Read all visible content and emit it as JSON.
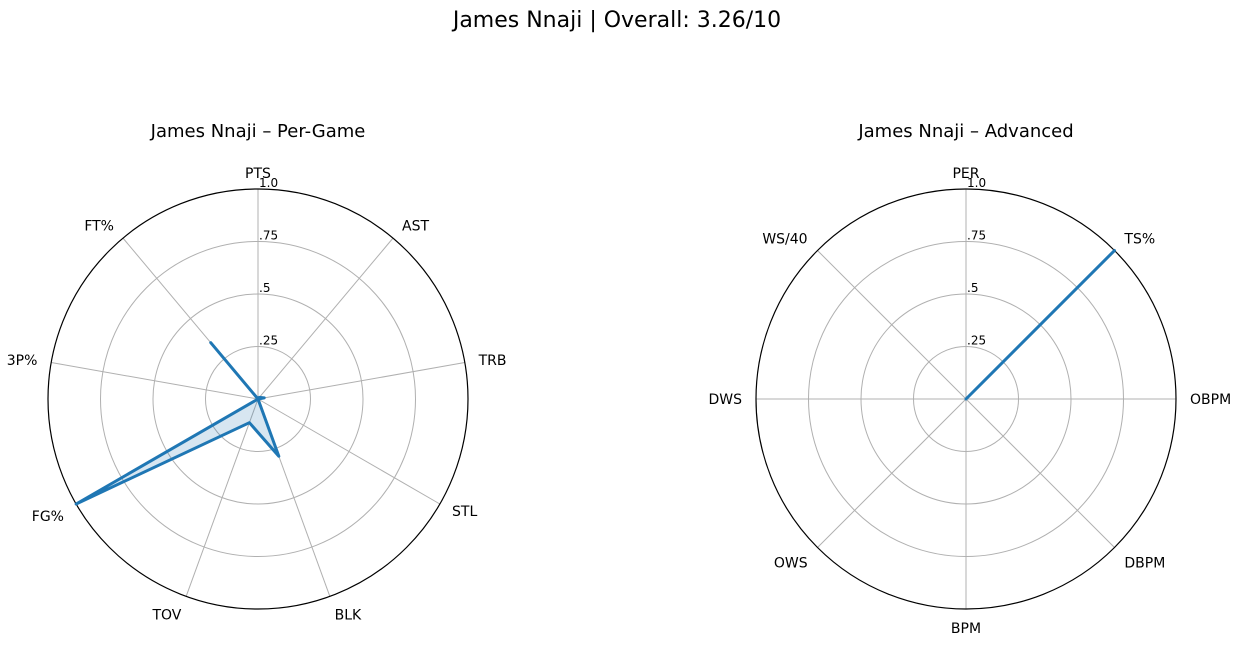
{
  "suptitle": "James Nnaji | Overall: 3.26/10",
  "colors": {
    "series": "#1f77b4",
    "grid": "#b0b0b0",
    "frame": "#000000"
  },
  "chart_data": [
    {
      "type": "radar",
      "title": "James Nnaji – Per-Game",
      "categories": [
        "PTS",
        "AST",
        "TRB",
        "STL",
        "BLK",
        "TOV",
        "FG%",
        "3P%",
        "FT%"
      ],
      "values": [
        0.0,
        0.01,
        0.03,
        0.0,
        0.29,
        0.12,
        1.0,
        0.0,
        0.35
      ],
      "rlim": [
        0,
        1.0
      ],
      "rticks": [
        ".25",
        ".5",
        ".75",
        "1.0"
      ],
      "grid": true
    },
    {
      "type": "radar",
      "title": "James Nnaji – Advanced",
      "categories": [
        "PER",
        "TS%",
        "OBPM",
        "DBPM",
        "BPM",
        "OWS",
        "DWS",
        "WS/40"
      ],
      "values": [
        0.0,
        1.0,
        0.0,
        0.0,
        0.0,
        0.0,
        0.0,
        0.0
      ],
      "rlim": [
        0,
        1.0
      ],
      "rticks": [
        ".25",
        ".5",
        ".75",
        "1.0"
      ],
      "grid": true
    }
  ]
}
